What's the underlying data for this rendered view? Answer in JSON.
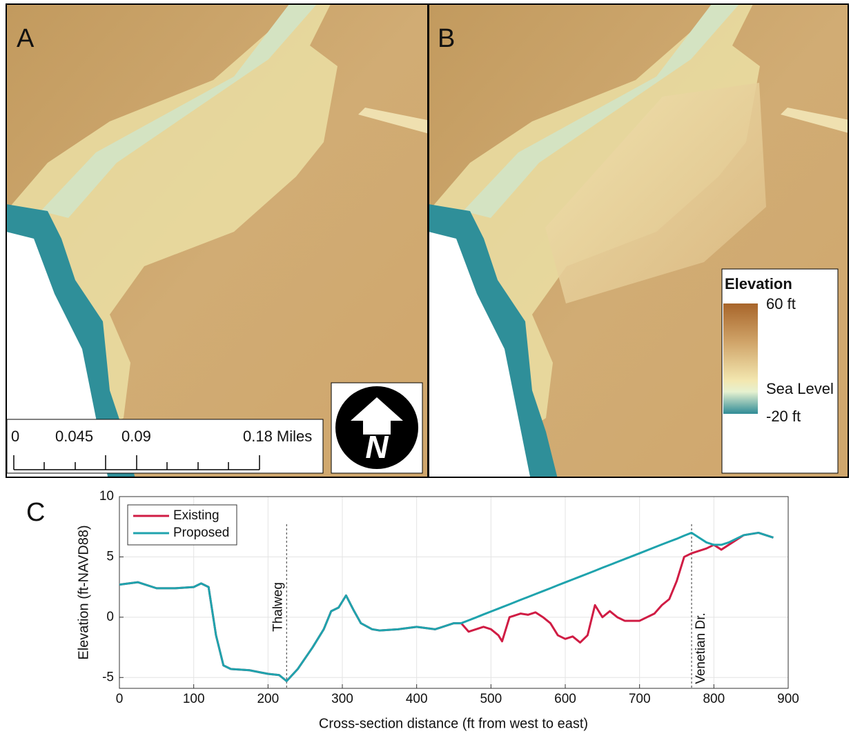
{
  "maps": {
    "panel_a": {
      "label": "A"
    },
    "panel_b": {
      "label": "B"
    },
    "scale_bar": {
      "labels": [
        "0",
        "0.045",
        "0.09",
        "0.18 Miles"
      ]
    },
    "north_arrow": {
      "label": "N"
    },
    "elevation_legend": {
      "title": "Elevation",
      "labels": [
        "60 ft",
        "Sea Level",
        "-20 ft"
      ]
    }
  },
  "chart_data": {
    "type": "line",
    "panel_label": "C",
    "xlabel": "Cross-section distance (ft from west to east)",
    "ylabel": "Elevation (ft-NAVD88)",
    "x": [
      0,
      25,
      50,
      75,
      100,
      110,
      120,
      130,
      140,
      150,
      175,
      200,
      215,
      225,
      240,
      260,
      275,
      285,
      295,
      305,
      315,
      325,
      340,
      350,
      375,
      400,
      425,
      450,
      460,
      470,
      480,
      490,
      500,
      510,
      515,
      525,
      540,
      550,
      560,
      570,
      580,
      590,
      600,
      610,
      620,
      630,
      640,
      650,
      660,
      670,
      680,
      700,
      720,
      730,
      740,
      750,
      760,
      770,
      780,
      790,
      800,
      810,
      820,
      840,
      860,
      880
    ],
    "series": [
      {
        "name": "Existing",
        "color": "#d01c44",
        "values": [
          2.7,
          2.9,
          2.4,
          2.4,
          2.5,
          2.8,
          2.5,
          -1.5,
          -4.0,
          -4.3,
          -4.4,
          -4.7,
          -4.8,
          -5.3,
          -4.3,
          -2.5,
          -1.0,
          0.5,
          0.8,
          1.8,
          0.6,
          -0.5,
          -1.0,
          -1.1,
          -1.0,
          -0.8,
          -1.0,
          -0.5,
          -0.5,
          -1.2,
          -1.0,
          -0.8,
          -1.0,
          -1.5,
          -2.0,
          0.0,
          0.3,
          0.2,
          0.4,
          0.0,
          -0.5,
          -1.5,
          -1.8,
          -1.6,
          -2.1,
          -1.5,
          1.0,
          0.0,
          0.5,
          0.0,
          -0.3,
          -0.3,
          0.3,
          1.0,
          1.5,
          3.0,
          5.0,
          5.3,
          5.5,
          5.7,
          6.0,
          5.6,
          6.0,
          6.8,
          7.0,
          6.6
        ]
      },
      {
        "name": "Proposed",
        "color": "#1fa3ad",
        "values": [
          2.7,
          2.9,
          2.4,
          2.4,
          2.5,
          2.8,
          2.5,
          -1.5,
          -4.0,
          -4.3,
          -4.4,
          -4.7,
          -4.8,
          -5.3,
          -4.3,
          -2.5,
          -1.0,
          0.5,
          0.8,
          1.8,
          0.6,
          -0.5,
          -1.0,
          -1.1,
          -1.0,
          -0.8,
          -1.0,
          -0.5,
          -0.5,
          -0.26,
          -0.02,
          0.23,
          0.47,
          0.71,
          0.83,
          1.07,
          1.44,
          1.68,
          1.92,
          2.16,
          2.4,
          2.65,
          2.89,
          3.13,
          3.37,
          3.61,
          3.85,
          4.1,
          4.34,
          4.58,
          4.82,
          5.3,
          5.79,
          6.03,
          6.27,
          6.5,
          6.76,
          7.0,
          6.6,
          6.2,
          6.0,
          6.0,
          6.2,
          6.8,
          7.0,
          6.6
        ]
      }
    ],
    "xlim": [
      0,
      900
    ],
    "xticks": [
      0,
      100,
      200,
      300,
      400,
      500,
      600,
      700,
      800,
      900
    ],
    "ylim": [
      -5.9,
      10
    ],
    "yticks": [
      -5,
      0,
      5,
      10
    ],
    "grid": true,
    "legend": "upper left",
    "annotations": [
      {
        "text": "Thalweg",
        "x": 225
      },
      {
        "text": "Venetian Dr.",
        "x": 770
      }
    ]
  }
}
